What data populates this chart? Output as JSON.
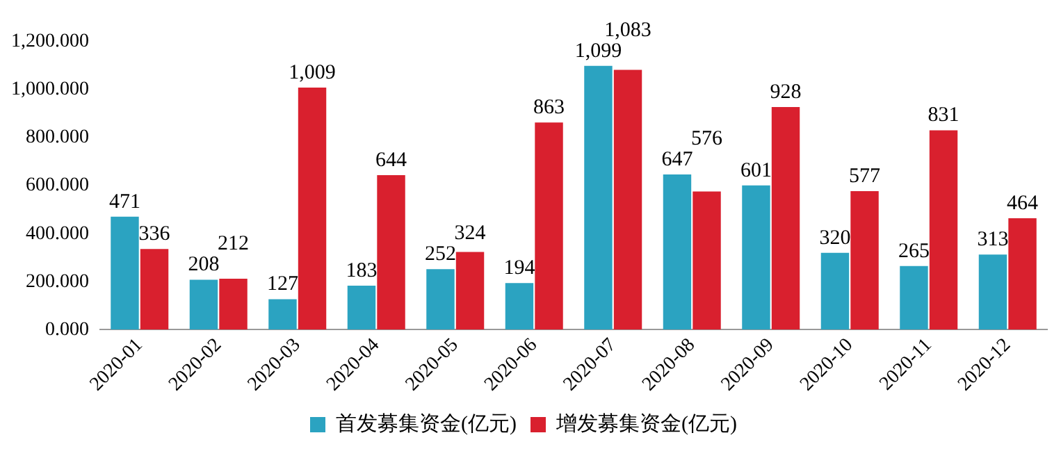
{
  "chart_data": {
    "type": "bar",
    "categories": [
      "2020-01",
      "2020-02",
      "2020-03",
      "2020-04",
      "2020-05",
      "2020-06",
      "2020-07",
      "2020-08",
      "2020-09",
      "2020-10",
      "2020-11",
      "2020-12"
    ],
    "series": [
      {
        "name": "首发募集资金(亿元)",
        "color": "#2ba3c1",
        "values": [
          471,
          208,
          127,
          183,
          252,
          194,
          1099,
          647,
          601,
          320,
          265,
          313
        ],
        "value_labels": [
          "471",
          "208",
          "127",
          "183",
          "252",
          "194",
          "1,099",
          "647",
          "601",
          "320",
          "265",
          "313"
        ]
      },
      {
        "name": "增发募集资金(亿元)",
        "color": "#d9202e",
        "values": [
          336,
          212,
          1009,
          644,
          324,
          863,
          1083,
          576,
          928,
          577,
          831,
          464
        ],
        "value_labels": [
          "336",
          "212",
          "1,009",
          "644",
          "324",
          "863",
          "1,083",
          "576",
          "928",
          "577",
          "831",
          "464"
        ]
      }
    ],
    "ylim": [
      0,
      1200
    ],
    "yticks": [
      {
        "value": 0,
        "label": "0.000"
      },
      {
        "value": 200,
        "label": "200.000"
      },
      {
        "value": 400,
        "label": "400.000"
      },
      {
        "value": 600,
        "label": "600.000"
      },
      {
        "value": 800,
        "label": "800.000"
      },
      {
        "value": 1000,
        "label": "1,000.000"
      },
      {
        "value": 1200,
        "label": "1,200.000"
      }
    ],
    "grid": false,
    "legend": "bottom"
  }
}
